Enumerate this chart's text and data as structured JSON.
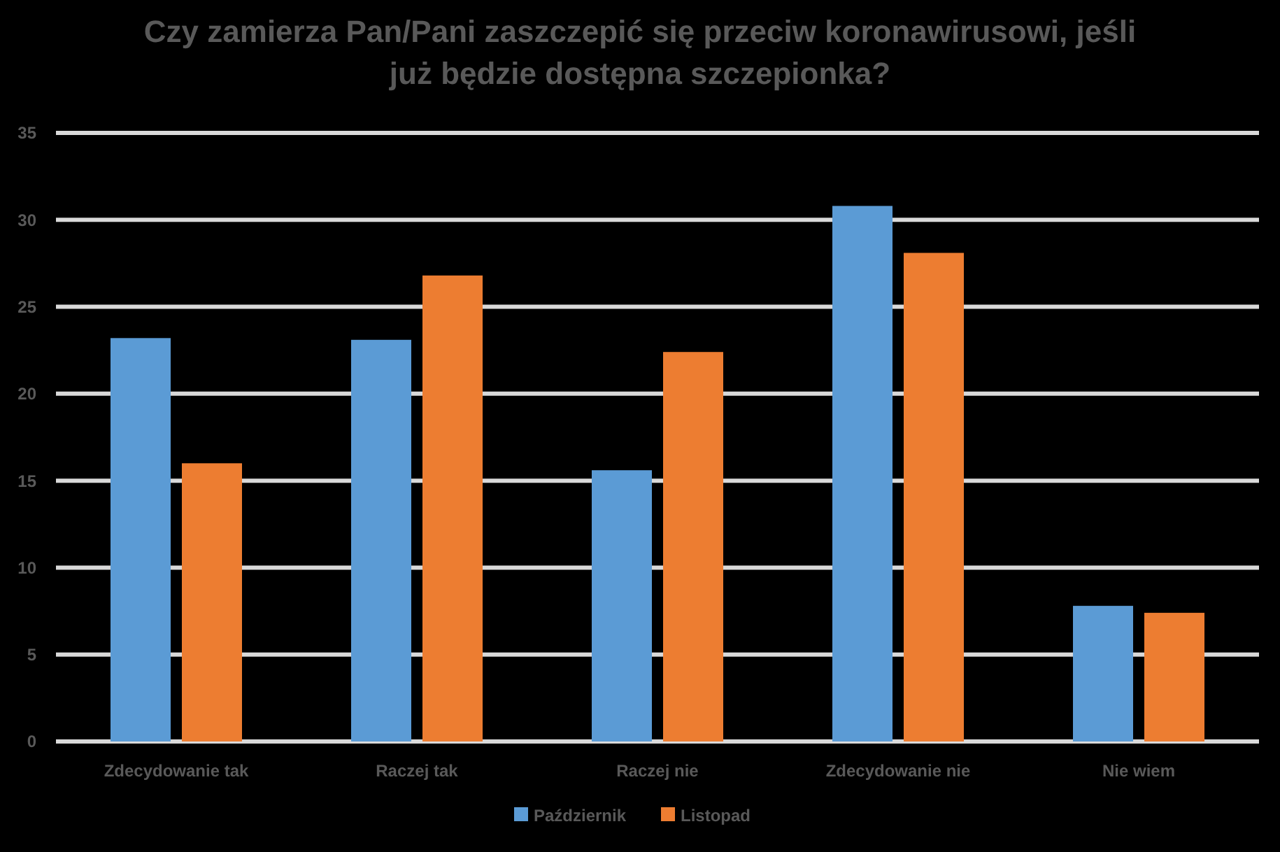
{
  "chart_data": {
    "type": "bar",
    "title": "Czy zamierza Pan/Pani zaszczepić się przeciw koronawirusowi, jeśli już będzie dostępna szczepionka?",
    "categories": [
      "Zdecydowanie tak",
      "Raczej tak",
      "Raczej nie",
      "Zdecydowanie nie",
      "Nie wiem"
    ],
    "series": [
      {
        "name": "Październik",
        "color": "#5b9bd5",
        "values": [
          23.2,
          23.1,
          15.6,
          30.8,
          7.8
        ]
      },
      {
        "name": "Listopad",
        "color": "#ed7d31",
        "values": [
          16.0,
          26.8,
          22.4,
          28.1,
          7.4
        ]
      }
    ],
    "ylim": [
      0,
      35
    ],
    "yticks": [
      0,
      5,
      10,
      15,
      20,
      25,
      30,
      35
    ],
    "grid": "y",
    "legend": "bottom"
  }
}
